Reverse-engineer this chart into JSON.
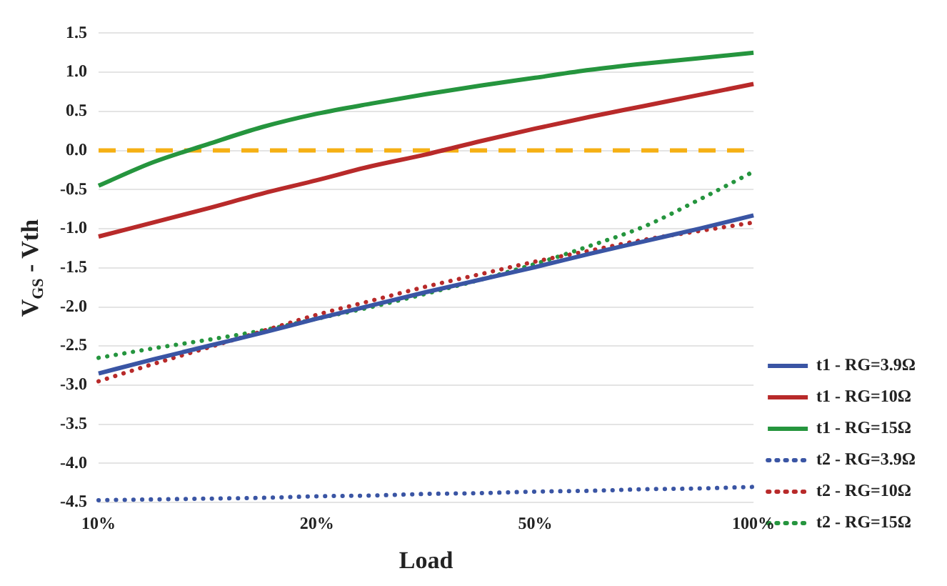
{
  "chart_data": {
    "type": "line",
    "xlabel": "Load",
    "ylabel": "V$_{GS}$ - Vth",
    "categories": [
      "10%",
      null,
      null,
      null,
      "20%",
      null,
      null,
      null,
      "50%",
      null,
      null,
      null,
      "100%"
    ],
    "series": [
      {
        "name": "t1 - RG=3.9Ω",
        "color": "#3a55a4",
        "line_style": "solid",
        "values": [
          -2.85,
          -2.67,
          -2.5,
          -2.33,
          -2.15,
          -1.98,
          -1.81,
          -1.65,
          -1.49,
          -1.32,
          -1.16,
          -1.0,
          -0.83
        ]
      },
      {
        "name": "t1 - RG=10Ω",
        "color": "#b82a2a",
        "line_style": "solid",
        "values": [
          -1.1,
          -0.92,
          -0.74,
          -0.55,
          -0.38,
          -0.2,
          -0.05,
          0.12,
          0.28,
          0.43,
          0.57,
          0.71,
          0.85
        ]
      },
      {
        "name": "t1 - RG=15Ω",
        "color": "#25953e",
        "line_style": "solid",
        "values": [
          -0.45,
          -0.15,
          0.08,
          0.3,
          0.47,
          0.6,
          0.72,
          0.83,
          0.93,
          1.03,
          1.11,
          1.18,
          1.25
        ]
      },
      {
        "name": "t2 - RG=3.9Ω",
        "color": "#3a55a4",
        "line_style": "dotted",
        "values": [
          -4.47,
          -4.46,
          -4.45,
          -4.44,
          -4.42,
          -4.41,
          -4.39,
          -4.38,
          -4.36,
          -4.35,
          -4.33,
          -4.32,
          -4.3
        ]
      },
      {
        "name": "t2 - RG=10Ω",
        "color": "#b82a2a",
        "line_style": "dotted",
        "values": [
          -2.95,
          -2.73,
          -2.52,
          -2.31,
          -2.1,
          -1.92,
          -1.74,
          -1.58,
          -1.42,
          -1.28,
          -1.14,
          -1.03,
          -0.92
        ]
      },
      {
        "name": "t2 - RG=15Ω",
        "color": "#25953e",
        "line_style": "dotted",
        "values": [
          -2.65,
          -2.53,
          -2.42,
          -2.3,
          -2.15,
          -2.0,
          -1.83,
          -1.65,
          -1.45,
          -1.22,
          -0.97,
          -0.63,
          -0.27
        ]
      }
    ],
    "ylim": [
      -4.5,
      1.5
    ],
    "yticks": [
      1.5,
      {
        "value": 1,
        "label": "1.0"
      },
      0.5,
      {
        "value": 0,
        "label": "0.0"
      },
      -0.5,
      {
        "value": -1,
        "label": "-1.0"
      },
      -1.5,
      {
        "value": -2,
        "label": "-2.0"
      },
      -2.5,
      {
        "value": -3,
        "label": "-3.0"
      },
      -3.5,
      {
        "value": -4,
        "label": "-4.0"
      },
      -4.5
    ],
    "grid": "y",
    "legend": "right",
    "marker": "none",
    "ref_lines": [
      {
        "axis": "y",
        "value": 0,
        "color": "#f5b014",
        "line_style": "dashed"
      }
    ]
  }
}
